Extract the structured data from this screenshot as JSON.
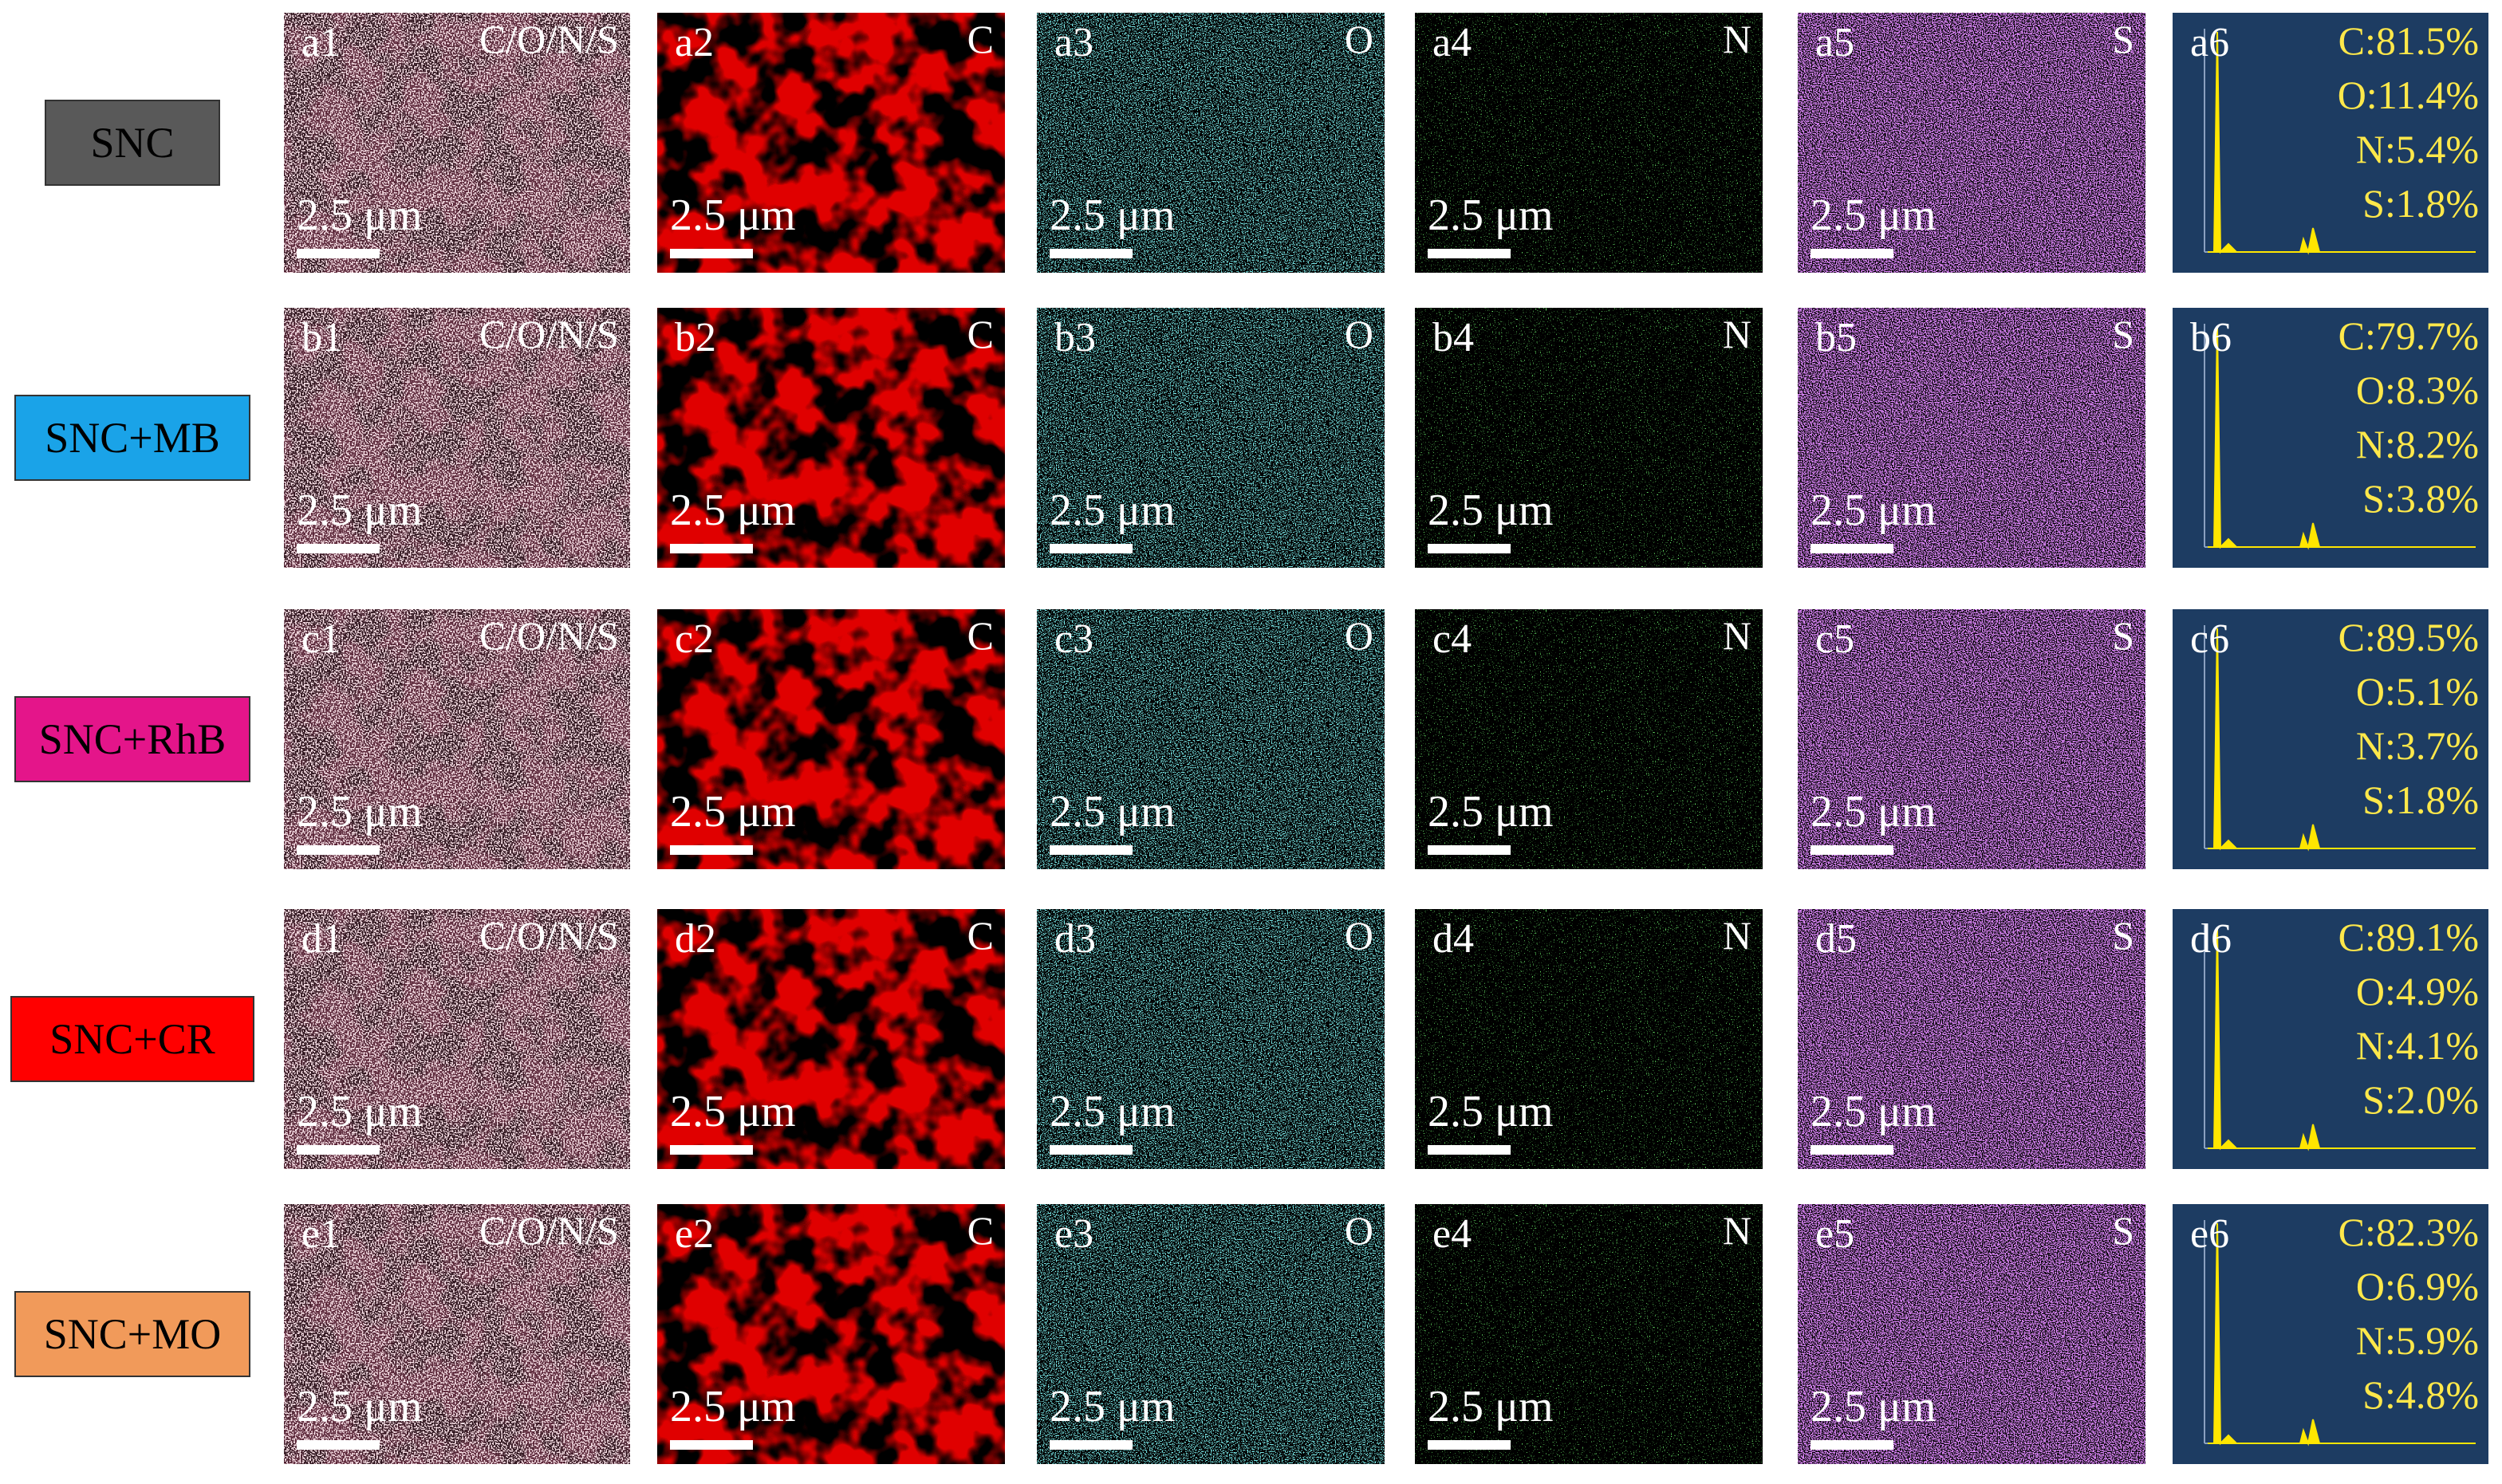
{
  "rows": [
    {
      "label": "SNC",
      "panels": [
        {
          "id": "a1",
          "element": "C/O/N/S",
          "scale": "2.5 μm"
        },
        {
          "id": "a2",
          "element": "C",
          "scale": "2.5 μm"
        },
        {
          "id": "a3",
          "element": "O",
          "scale": "2.5 μm"
        },
        {
          "id": "a4",
          "element": "N",
          "scale": "2.5 μm"
        },
        {
          "id": "a5",
          "element": "S",
          "scale": "2.5 μm"
        }
      ],
      "eds": {
        "id": "a6",
        "composition": [
          "C:81.5%",
          "O:11.4%",
          "N:5.4%",
          "S:1.8%"
        ]
      }
    },
    {
      "label": "SNC+MB",
      "panels": [
        {
          "id": "b1",
          "element": "C/O/N/S",
          "scale": "2.5 μm"
        },
        {
          "id": "b2",
          "element": "C",
          "scale": "2.5 μm"
        },
        {
          "id": "b3",
          "element": "O",
          "scale": "2.5 μm"
        },
        {
          "id": "b4",
          "element": "N",
          "scale": "2.5 μm"
        },
        {
          "id": "b5",
          "element": "S",
          "scale": "2.5 μm"
        }
      ],
      "eds": {
        "id": "b6",
        "composition": [
          "C:79.7%",
          "O:8.3%",
          "N:8.2%",
          "S:3.8%"
        ]
      }
    },
    {
      "label": "SNC+RhB",
      "panels": [
        {
          "id": "c1",
          "element": "C/O/N/S",
          "scale": "2.5 μm"
        },
        {
          "id": "c2",
          "element": "C",
          "scale": "2.5 μm"
        },
        {
          "id": "c3",
          "element": "O",
          "scale": "2.5 μm"
        },
        {
          "id": "c4",
          "element": "N",
          "scale": "2.5 μm"
        },
        {
          "id": "c5",
          "element": "S",
          "scale": "2.5 μm"
        }
      ],
      "eds": {
        "id": "c6",
        "composition": [
          "C:89.5%",
          "O:5.1%",
          "N:3.7%",
          "S:1.8%"
        ]
      }
    },
    {
      "label": "SNC+CR",
      "panels": [
        {
          "id": "d1",
          "element": "C/O/N/S",
          "scale": "2.5 μm"
        },
        {
          "id": "d2",
          "element": "C",
          "scale": "2.5 μm"
        },
        {
          "id": "d3",
          "element": "O",
          "scale": "2.5 μm"
        },
        {
          "id": "d4",
          "element": "N",
          "scale": "2.5 μm"
        },
        {
          "id": "d5",
          "element": "S",
          "scale": "2.5 μm"
        }
      ],
      "eds": {
        "id": "d6",
        "composition": [
          "C:89.1%",
          "O:4.9%",
          "N:4.1%",
          "S:2.0%"
        ]
      }
    },
    {
      "label": "SNC+MO",
      "panels": [
        {
          "id": "e1",
          "element": "C/O/N/S",
          "scale": "2.5 μm"
        },
        {
          "id": "e2",
          "element": "C",
          "scale": "2.5 μm"
        },
        {
          "id": "e3",
          "element": "O",
          "scale": "2.5 μm"
        },
        {
          "id": "e4",
          "element": "N",
          "scale": "2.5 μm"
        },
        {
          "id": "e5",
          "element": "S",
          "scale": "2.5 μm"
        }
      ],
      "eds": {
        "id": "e6",
        "composition": [
          "C:82.3%",
          "O:6.9%",
          "N:5.9%",
          "S:4.8%"
        ]
      }
    }
  ]
}
